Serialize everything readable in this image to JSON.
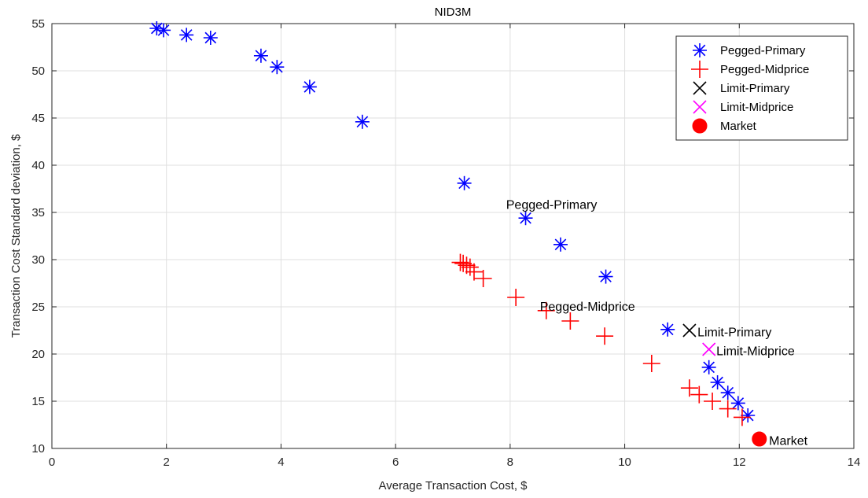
{
  "chart_data": {
    "type": "scatter",
    "title": "NID3M",
    "xlabel": "Average Transaction Cost, $",
    "ylabel": "Transaction Cost Standard deviation, $",
    "xlim": [
      0,
      14
    ],
    "ylim": [
      10,
      55
    ],
    "xticks": [
      0,
      2,
      4,
      6,
      8,
      10,
      12,
      14
    ],
    "yticks": [
      10,
      15,
      20,
      25,
      30,
      35,
      40,
      45,
      50,
      55
    ],
    "xtick_labels": [
      "0",
      "2",
      "4",
      "6",
      "8",
      "10",
      "12",
      "14"
    ],
    "ytick_labels": [
      "10",
      "15",
      "20",
      "25",
      "30",
      "35",
      "40",
      "45",
      "50",
      "55"
    ],
    "grid": true,
    "legend_position": "top-right",
    "series": [
      {
        "name": "Pegged-Primary",
        "marker": "asterisk",
        "color": "#0000ff",
        "points": [
          [
            1.83,
            54.5
          ],
          [
            1.95,
            54.3
          ],
          [
            2.35,
            53.8
          ],
          [
            2.77,
            53.5
          ],
          [
            3.65,
            51.6
          ],
          [
            3.93,
            50.4
          ],
          [
            4.5,
            48.3
          ],
          [
            5.42,
            44.6
          ],
          [
            7.2,
            38.1
          ],
          [
            8.27,
            34.4
          ],
          [
            8.88,
            31.6
          ],
          [
            9.67,
            28.2
          ],
          [
            10.75,
            22.6
          ],
          [
            11.47,
            18.6
          ],
          [
            11.62,
            17.0
          ],
          [
            11.8,
            15.9
          ],
          [
            11.98,
            14.8
          ],
          [
            12.15,
            13.5
          ]
        ]
      },
      {
        "name": "Pegged-Midprice",
        "marker": "plus",
        "color": "#ff0000",
        "points": [
          [
            7.13,
            29.7
          ],
          [
            7.18,
            29.6
          ],
          [
            7.24,
            29.4
          ],
          [
            7.3,
            29.2
          ],
          [
            7.37,
            28.7
          ],
          [
            7.53,
            28.0
          ],
          [
            8.1,
            26.0
          ],
          [
            8.63,
            24.6
          ],
          [
            9.05,
            23.5
          ],
          [
            9.65,
            21.9
          ],
          [
            10.47,
            19.0
          ],
          [
            11.13,
            16.4
          ],
          [
            11.3,
            15.7
          ],
          [
            11.53,
            15.0
          ],
          [
            11.8,
            14.2
          ],
          [
            12.05,
            13.3
          ]
        ]
      },
      {
        "name": "Limit-Primary",
        "marker": "x",
        "color": "#000000",
        "points": [
          [
            11.13,
            22.5
          ]
        ]
      },
      {
        "name": "Limit-Midprice",
        "marker": "x",
        "color": "#ff00ff",
        "points": [
          [
            11.47,
            20.5
          ]
        ]
      },
      {
        "name": "Market",
        "marker": "circle",
        "color": "#ff0000",
        "points": [
          [
            12.35,
            11.0
          ]
        ]
      }
    ],
    "annotations": [
      {
        "text": "Pegged-Primary",
        "x": 7.93,
        "y": 35.8
      },
      {
        "text": "Pegged-Midprice",
        "x": 8.52,
        "y": 25.0
      },
      {
        "text": "Limit-Primary",
        "x": 11.27,
        "y": 22.3
      },
      {
        "text": "Limit-Midprice",
        "x": 11.6,
        "y": 20.3
      },
      {
        "text": "Market",
        "x": 12.52,
        "y": 10.8
      }
    ]
  }
}
